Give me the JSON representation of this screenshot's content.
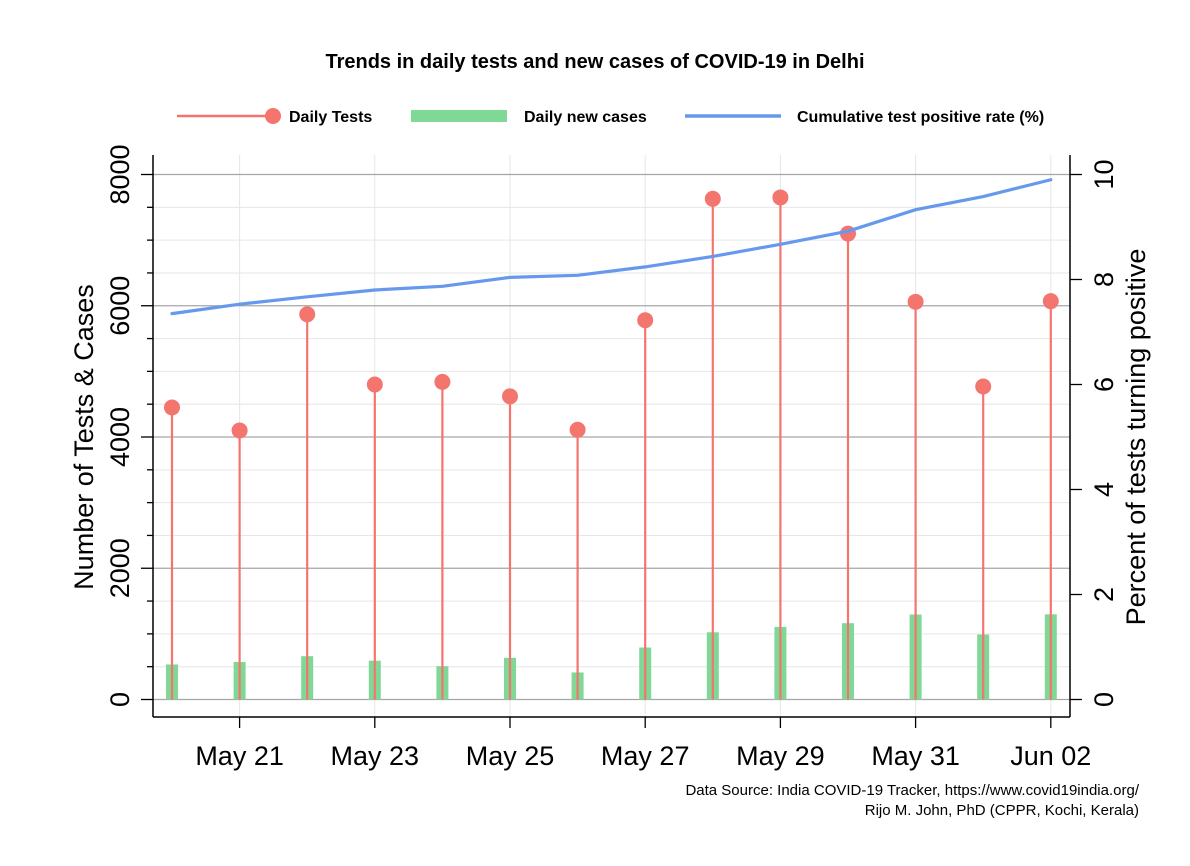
{
  "chart_data": {
    "type": "bar",
    "title": "Trends in daily tests and new cases of COVID-19 in Delhi",
    "x": [
      "May 20",
      "May 21",
      "May 22",
      "May 23",
      "May 24",
      "May 25",
      "May 26",
      "May 27",
      "May 28",
      "May 29",
      "May 30",
      "May 31",
      "Jun 01",
      "Jun 02"
    ],
    "x_tick_labels": [
      "May 21",
      "May 23",
      "May 25",
      "May 27",
      "May 29",
      "May 31",
      "Jun 02"
    ],
    "ylabel_left": "Number of Tests & Cases",
    "ylabel_right": "Percent of tests turning positive",
    "ylim_left": [
      0,
      8000
    ],
    "ylim_right": [
      0,
      10
    ],
    "y_ticks_left": [
      0,
      2000,
      4000,
      6000,
      8000
    ],
    "y_ticks_right": [
      0,
      2,
      4,
      6,
      8,
      10
    ],
    "legend_position": "top",
    "grid": true,
    "series": [
      {
        "name": "Daily Tests",
        "kind": "lollipop",
        "axis": "left",
        "color": "#f4756e",
        "values": [
          4450,
          4100,
          5870,
          4800,
          4840,
          4620,
          4110,
          5780,
          7630,
          7650,
          7100,
          6060,
          4770,
          6070
        ]
      },
      {
        "name": "Daily new cases",
        "kind": "bar",
        "axis": "left",
        "color": "#7fd896",
        "values": [
          534,
          571,
          660,
          591,
          508,
          635,
          412,
          792,
          1024,
          1106,
          1163,
          1295,
          990,
          1298
        ]
      },
      {
        "name": "Cumulative test positive rate (%)",
        "kind": "line",
        "axis": "right",
        "color": "#6699ee",
        "values": [
          7.35,
          7.53,
          7.67,
          7.8,
          7.87,
          8.04,
          8.08,
          8.24,
          8.44,
          8.67,
          8.92,
          9.33,
          9.58,
          9.9
        ]
      }
    ]
  },
  "source": {
    "line1": "Data Source: India COVID-19 Tracker, https://www.covid19india.org/",
    "line2": "Rijo M. John, PhD (CPPR, Kochi, Kerala)"
  }
}
